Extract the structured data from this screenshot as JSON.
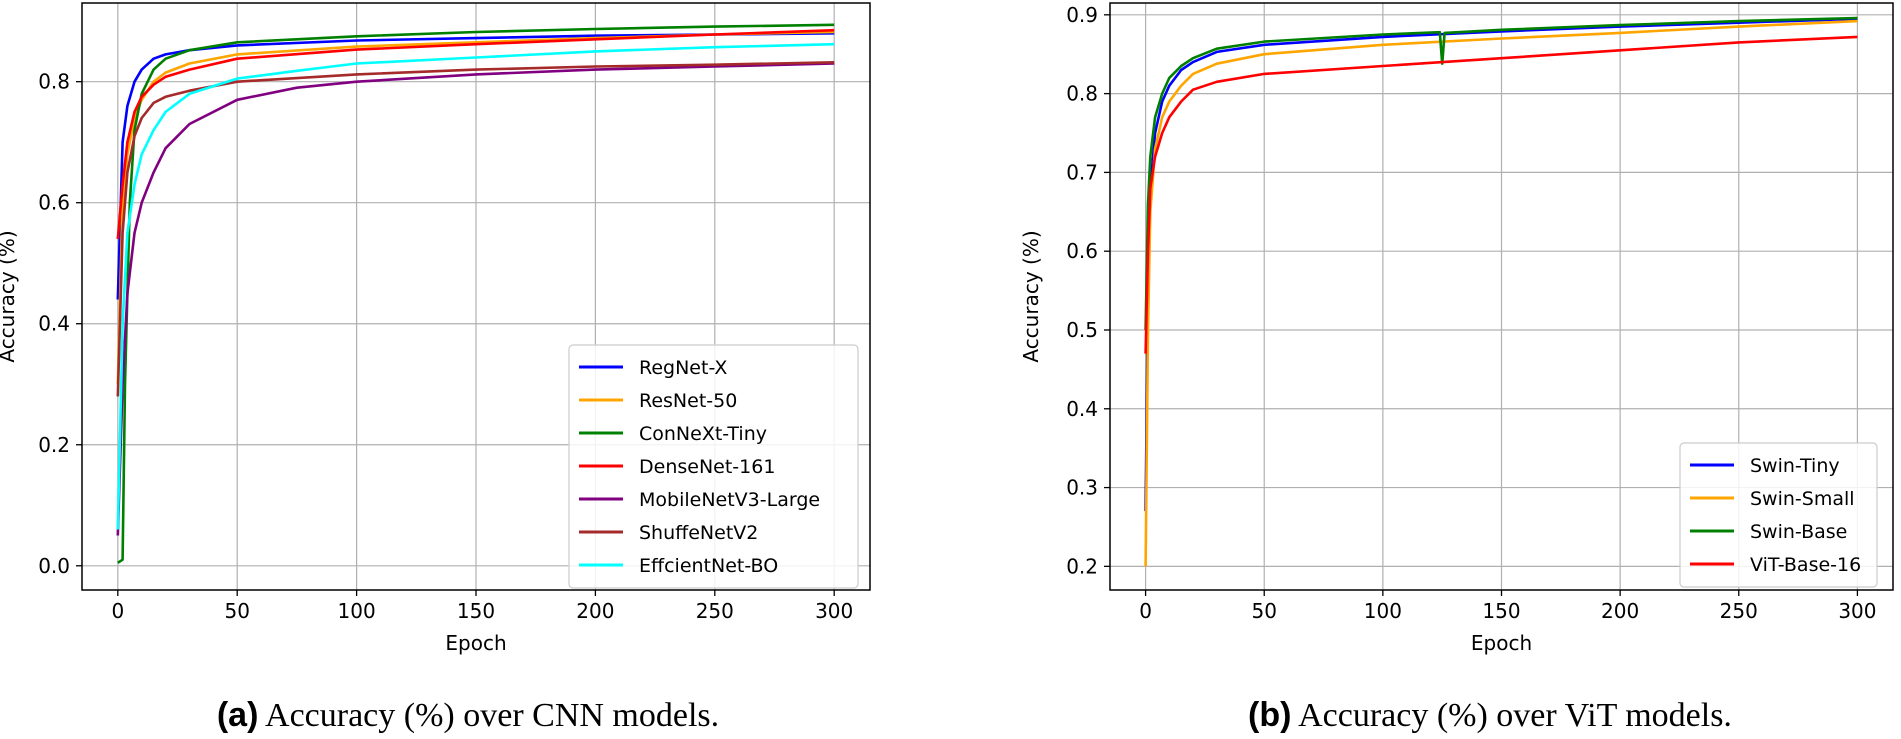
{
  "chart_data": [
    {
      "type": "line",
      "xlabel": "Epoch",
      "ylabel": "Accuracy (%)",
      "xlim": [
        -15,
        315
      ],
      "ylim": [
        -0.04,
        0.93
      ],
      "xticks": [
        0,
        50,
        100,
        150,
        200,
        250,
        300
      ],
      "yticks": [
        0.0,
        0.2,
        0.4,
        0.6,
        0.8
      ],
      "ytick_labels": [
        "0.0",
        "0.2",
        "0.4",
        "0.6",
        "0.8"
      ],
      "xtick_labels": [
        "0",
        "50",
        "100",
        "150",
        "200",
        "250",
        "300"
      ],
      "grid": true,
      "legend_position": "lower-right",
      "caption_tag": "(a)",
      "caption_text": "Accuracy (%) over CNN models.",
      "series": [
        {
          "name": "RegNet-X",
          "color": "#0000ff",
          "x": [
            0,
            2,
            4,
            7,
            10,
            15,
            20,
            30,
            50,
            100,
            150,
            200,
            250,
            300
          ],
          "y": [
            0.44,
            0.7,
            0.76,
            0.8,
            0.82,
            0.838,
            0.845,
            0.852,
            0.86,
            0.868,
            0.872,
            0.876,
            0.878,
            0.88
          ]
        },
        {
          "name": "ResNet-50",
          "color": "#ffa500",
          "x": [
            0,
            2,
            4,
            7,
            10,
            15,
            20,
            30,
            50,
            100,
            150,
            200,
            250,
            300
          ],
          "y": [
            0.3,
            0.6,
            0.68,
            0.74,
            0.77,
            0.8,
            0.815,
            0.83,
            0.845,
            0.858,
            0.865,
            0.872,
            0.878,
            0.882
          ]
        },
        {
          "name": "ConNeXt-Tiny",
          "color": "#008000",
          "x": [
            0,
            2,
            3,
            5,
            7,
            10,
            15,
            20,
            30,
            50,
            100,
            150,
            200,
            250,
            300
          ],
          "y": [
            0.005,
            0.01,
            0.3,
            0.6,
            0.72,
            0.78,
            0.82,
            0.838,
            0.852,
            0.865,
            0.875,
            0.882,
            0.887,
            0.891,
            0.894
          ]
        },
        {
          "name": "DenseNet-161",
          "color": "#ff0000",
          "x": [
            0,
            2,
            4,
            7,
            10,
            15,
            20,
            30,
            50,
            100,
            150,
            200,
            250,
            300
          ],
          "y": [
            0.54,
            0.63,
            0.7,
            0.75,
            0.775,
            0.795,
            0.808,
            0.82,
            0.838,
            0.853,
            0.862,
            0.87,
            0.878,
            0.885
          ]
        },
        {
          "name": "MobileNetV3-Large",
          "color": "#800080",
          "x": [
            0,
            2,
            4,
            7,
            10,
            15,
            20,
            30,
            50,
            75,
            100,
            150,
            200,
            250,
            300
          ],
          "y": [
            0.05,
            0.3,
            0.45,
            0.55,
            0.6,
            0.65,
            0.69,
            0.73,
            0.77,
            0.79,
            0.8,
            0.812,
            0.82,
            0.825,
            0.83
          ]
        },
        {
          "name": "ShuffeNetV2",
          "color": "#a52a2a",
          "x": [
            0,
            2,
            4,
            7,
            10,
            15,
            20,
            30,
            50,
            100,
            150,
            200,
            250,
            300
          ],
          "y": [
            0.28,
            0.55,
            0.65,
            0.71,
            0.74,
            0.765,
            0.775,
            0.785,
            0.8,
            0.812,
            0.82,
            0.825,
            0.828,
            0.832
          ]
        },
        {
          "name": "EffcientNet-BO",
          "color": "#00ffff",
          "x": [
            0,
            2,
            4,
            7,
            10,
            15,
            20,
            30,
            50,
            75,
            100,
            150,
            200,
            250,
            300
          ],
          "y": [
            0.06,
            0.4,
            0.55,
            0.63,
            0.68,
            0.72,
            0.75,
            0.78,
            0.805,
            0.818,
            0.83,
            0.84,
            0.85,
            0.857,
            0.862
          ]
        }
      ]
    },
    {
      "type": "line",
      "xlabel": "Epoch",
      "ylabel": "Accuracy (%)",
      "xlim": [
        -15,
        315
      ],
      "ylim": [
        0.17,
        0.915
      ],
      "xticks": [
        0,
        50,
        100,
        150,
        200,
        250,
        300
      ],
      "yticks": [
        0.2,
        0.3,
        0.4,
        0.5,
        0.6,
        0.7,
        0.8,
        0.9
      ],
      "ytick_labels": [
        "0.2",
        "0.3",
        "0.4",
        "0.5",
        "0.6",
        "0.7",
        "0.8",
        "0.9"
      ],
      "xtick_labels": [
        "0",
        "50",
        "100",
        "150",
        "200",
        "250",
        "300"
      ],
      "grid": true,
      "legend_position": "lower-right",
      "caption_tag": "(b)",
      "caption_text": "Accuracy (%) over ViT models.",
      "series": [
        {
          "name": "Swin-Tiny",
          "color": "#0000ff",
          "x": [
            0,
            1,
            2,
            4,
            7,
            10,
            15,
            20,
            30,
            50,
            100,
            150,
            200,
            250,
            300
          ],
          "y": [
            0.27,
            0.55,
            0.68,
            0.75,
            0.79,
            0.81,
            0.83,
            0.84,
            0.853,
            0.862,
            0.872,
            0.879,
            0.885,
            0.89,
            0.895
          ]
        },
        {
          "name": "Swin-Small",
          "color": "#ffa500",
          "x": [
            0,
            1,
            2,
            4,
            7,
            10,
            15,
            20,
            30,
            50,
            100,
            150,
            200,
            250,
            300
          ],
          "y": [
            0.2,
            0.5,
            0.65,
            0.73,
            0.77,
            0.79,
            0.81,
            0.825,
            0.838,
            0.85,
            0.862,
            0.87,
            0.877,
            0.885,
            0.892
          ]
        },
        {
          "name": "Swin-Base",
          "color": "#008000",
          "x": [
            0,
            1,
            2,
            4,
            7,
            10,
            15,
            20,
            30,
            50,
            100,
            124,
            125,
            126,
            150,
            200,
            250,
            300
          ],
          "y": [
            0.5,
            0.66,
            0.72,
            0.77,
            0.8,
            0.82,
            0.835,
            0.845,
            0.857,
            0.866,
            0.875,
            0.878,
            0.838,
            0.877,
            0.881,
            0.887,
            0.892,
            0.896
          ]
        },
        {
          "name": "ViT-Base-16",
          "color": "#ff0000",
          "x": [
            0,
            1,
            2,
            4,
            7,
            10,
            15,
            20,
            30,
            50,
            100,
            150,
            200,
            250,
            300
          ],
          "y": [
            0.47,
            0.6,
            0.68,
            0.72,
            0.75,
            0.77,
            0.79,
            0.805,
            0.815,
            0.825,
            0.835,
            0.845,
            0.855,
            0.865,
            0.872
          ]
        }
      ]
    }
  ]
}
